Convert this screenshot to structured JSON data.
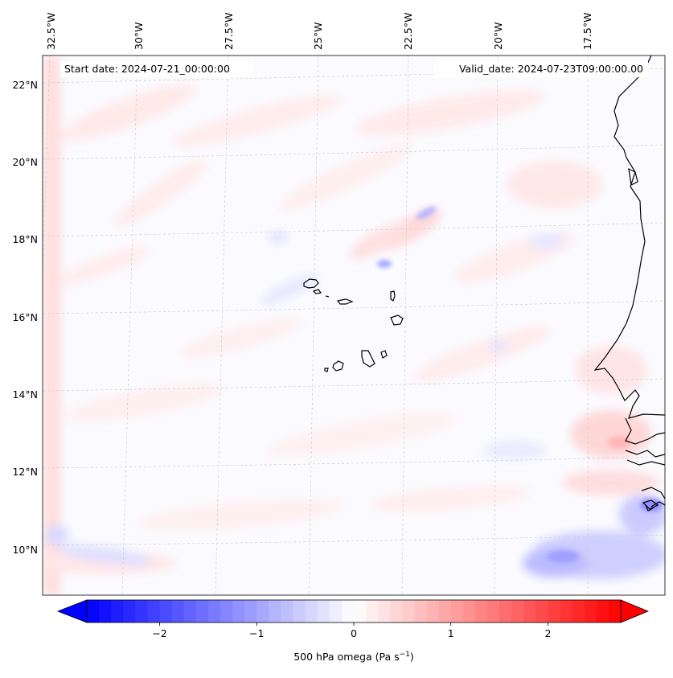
{
  "map": {
    "start_date_label": "Start date: 2024-07-21_00:00:00",
    "valid_date_label": "Valid_date: 2024-07-23T09:00:00.00",
    "lon_labels": [
      "32.5°W",
      "30°W",
      "27.5°W",
      "25°W",
      "22.5°W",
      "20°W",
      "17.5°W"
    ],
    "lat_labels": [
      "22°N",
      "20°N",
      "18°N",
      "16°N",
      "14°N",
      "12°N",
      "10°N"
    ]
  },
  "colorbar": {
    "label": "500 hPa omega (Pa s",
    "label_exp": "−1",
    "label_close": ")",
    "tick_labels": [
      "−2",
      "−1",
      "0",
      "1",
      "2"
    ],
    "ticks": [
      -2,
      -1,
      0,
      1,
      2
    ],
    "min": -2.75,
    "max": 2.75,
    "levels": 44
  },
  "colors": {
    "negative": "#0000ff",
    "neutral": "#ffffff",
    "positive": "#ff0000",
    "coastline": "#000000"
  }
}
